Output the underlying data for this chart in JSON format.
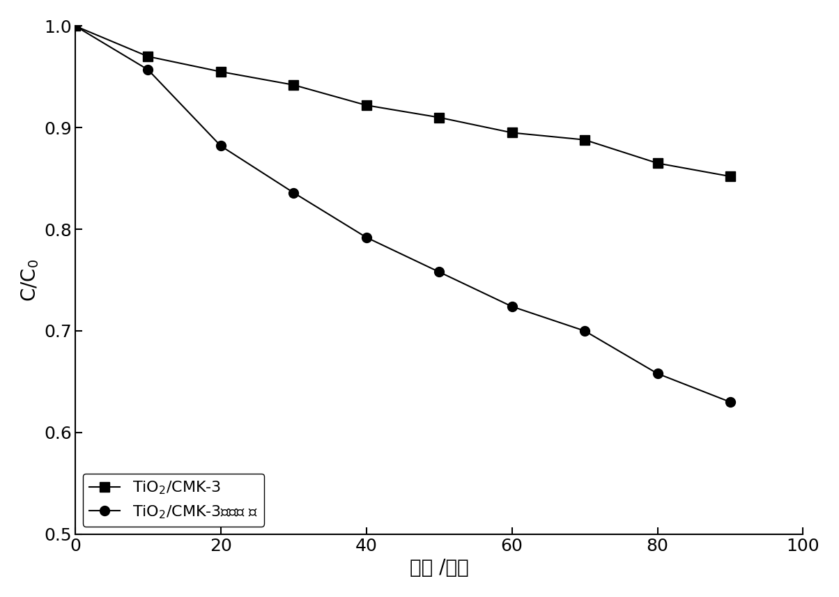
{
  "series1_x": [
    0,
    10,
    20,
    30,
    40,
    50,
    60,
    70,
    80,
    90
  ],
  "series1_y": [
    1.0,
    0.97,
    0.955,
    0.942,
    0.922,
    0.91,
    0.895,
    0.888,
    0.865,
    0.852
  ],
  "series2_x": [
    0,
    10,
    20,
    30,
    40,
    50,
    60,
    70,
    80,
    90
  ],
  "series2_y": [
    1.0,
    0.957,
    0.882,
    0.836,
    0.792,
    0.758,
    0.724,
    0.7,
    0.658,
    0.63
  ],
  "xlabel": "时间 /分钟",
  "ylabel": "C/C$_0$",
  "series1_label_ascii": "TiO$_2$/CMK-3",
  "series2_label_ascii": "TiO$_2$/CMK-3（辐照 ）",
  "xlim": [
    0,
    100
  ],
  "ylim": [
    0.5,
    1.0
  ],
  "xticks": [
    0,
    20,
    40,
    60,
    80,
    100
  ],
  "yticks": [
    0.5,
    0.6,
    0.7,
    0.8,
    0.9,
    1.0
  ],
  "line_color": "#000000",
  "marker1": "s",
  "marker2": "o",
  "markersize": 10,
  "linewidth": 1.5,
  "legend_loc": "lower left",
  "label_fontsize": 20,
  "tick_fontsize": 18,
  "legend_fontsize": 16
}
